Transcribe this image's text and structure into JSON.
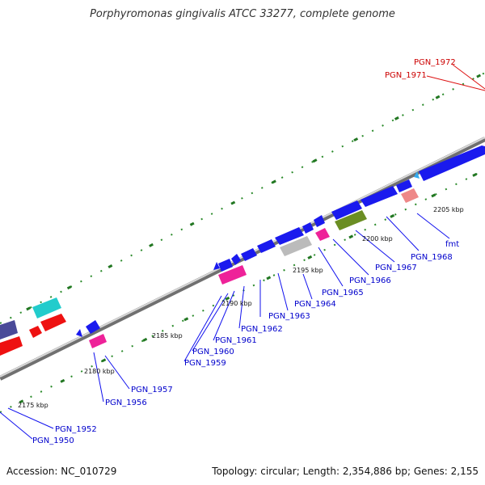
{
  "title": "Porphyromonas gingivalis ATCC 33277, complete genome",
  "footer": {
    "accession_label": "Accession:",
    "accession": "NC_010729",
    "topology_label": "Topology:",
    "topology": "circular",
    "length_label": "Length:",
    "length": "2,354,886 bp",
    "genes_label": "Genes:",
    "genes": "2,155"
  },
  "ticks": [
    "2175 kbp",
    "2180 kbp",
    "2185 kbp",
    "2190 kbp",
    "2195 kbp",
    "2200 kbp",
    "2205 kbp"
  ],
  "genes": [
    {
      "id": "PGN_1950",
      "color": "#0000cc"
    },
    {
      "id": "PGN_1952",
      "color": "#0000cc"
    },
    {
      "id": "PGN_1956",
      "color": "#0000cc"
    },
    {
      "id": "PGN_1957",
      "color": "#0000cc"
    },
    {
      "id": "PGN_1959",
      "color": "#0000cc"
    },
    {
      "id": "PGN_1960",
      "color": "#0000cc"
    },
    {
      "id": "PGN_1961",
      "color": "#0000cc"
    },
    {
      "id": "PGN_1962",
      "color": "#0000cc"
    },
    {
      "id": "PGN_1963",
      "color": "#0000cc"
    },
    {
      "id": "PGN_1964",
      "color": "#0000cc"
    },
    {
      "id": "PGN_1965",
      "color": "#0000cc"
    },
    {
      "id": "PGN_1966",
      "color": "#0000cc"
    },
    {
      "id": "PGN_1967",
      "color": "#0000cc"
    },
    {
      "id": "PGN_1968",
      "color": "#0000cc"
    },
    {
      "id": "fmt",
      "color": "#0000cc"
    },
    {
      "id": "PGN_1971",
      "color": "#cc0000"
    },
    {
      "id": "PGN_1972",
      "color": "#cc0000"
    }
  ],
  "colors": {
    "backbone": "#8a8a8a",
    "tick": "#227722",
    "blue_feature": "#1a1aee",
    "red_feature": "#ee1111",
    "magenta_feature": "#ee2299",
    "cyan_feature": "#22cccc",
    "gray_feature": "#bbbbbb",
    "olive_feature": "#6b8e23",
    "pink_feature": "#ee8888",
    "navy_feature": "#4a4a99",
    "lightblue_feature": "#33aaee"
  }
}
